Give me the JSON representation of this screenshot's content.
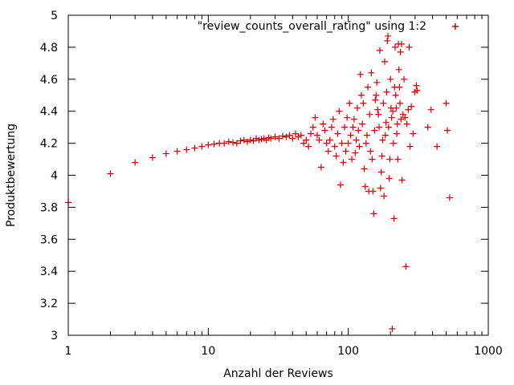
{
  "chart_data": {
    "type": "scatter",
    "title": "",
    "xlabel": "Anzahl der Reviews",
    "ylabel": "Produktbewertung",
    "xscale": "log",
    "xlim": [
      1,
      1000
    ],
    "ylim": [
      3,
      5
    ],
    "xticks": [
      1,
      10,
      100,
      1000
    ],
    "xtick_labels": [
      "1",
      "10",
      "100",
      "1000"
    ],
    "yticks": [
      3,
      3.2,
      3.4,
      3.6,
      3.8,
      4,
      4.2,
      4.4,
      4.6,
      4.8,
      5
    ],
    "ytick_labels": [
      "3",
      "3.2",
      "3.4",
      "3.6",
      "3.8",
      "4",
      "4.2",
      "4.4",
      "4.6",
      "4.8",
      "5"
    ],
    "grid": false,
    "legend_position": "top-right",
    "marker": "plus",
    "colors": {
      "series": "#cc0000",
      "axes": "#000000"
    },
    "series": [
      {
        "name": "\"review_counts_overall_rating\" using 1:2",
        "points": [
          [
            1,
            3.83
          ],
          [
            2,
            4.01
          ],
          [
            3,
            4.08
          ],
          [
            4,
            4.11
          ],
          [
            5,
            4.135
          ],
          [
            6,
            4.15
          ],
          [
            7,
            4.16
          ],
          [
            8,
            4.17
          ],
          [
            9,
            4.18
          ],
          [
            10,
            4.19
          ],
          [
            11,
            4.195
          ],
          [
            12,
            4.2
          ],
          [
            13,
            4.2
          ],
          [
            14,
            4.21
          ],
          [
            15,
            4.205
          ],
          [
            16,
            4.2
          ],
          [
            17,
            4.215
          ],
          [
            18,
            4.22
          ],
          [
            19,
            4.21
          ],
          [
            20,
            4.22
          ],
          [
            21,
            4.215
          ],
          [
            22,
            4.23
          ],
          [
            23,
            4.22
          ],
          [
            24,
            4.225
          ],
          [
            25,
            4.23
          ],
          [
            26,
            4.22
          ],
          [
            27,
            4.235
          ],
          [
            28,
            4.23
          ],
          [
            30,
            4.24
          ],
          [
            32,
            4.23
          ],
          [
            34,
            4.245
          ],
          [
            36,
            4.24
          ],
          [
            38,
            4.25
          ],
          [
            40,
            4.23
          ],
          [
            42,
            4.26
          ],
          [
            44,
            4.24
          ],
          [
            46,
            4.25
          ],
          [
            48,
            4.2
          ],
          [
            50,
            4.22
          ],
          [
            52,
            4.18
          ],
          [
            54,
            4.26
          ],
          [
            56,
            4.3
          ],
          [
            58,
            4.36
          ],
          [
            60,
            4.25
          ],
          [
            62,
            4.22
          ],
          [
            64,
            4.05
          ],
          [
            66,
            4.32
          ],
          [
            68,
            4.28
          ],
          [
            70,
            4.2
          ],
          [
            72,
            4.15
          ],
          [
            74,
            4.22
          ],
          [
            76,
            4.3
          ],
          [
            78,
            4.35
          ],
          [
            80,
            4.18
          ],
          [
            82,
            4.12
          ],
          [
            84,
            4.26
          ],
          [
            86,
            4.4
          ],
          [
            88,
            3.94
          ],
          [
            90,
            4.2
          ],
          [
            92,
            4.08
          ],
          [
            94,
            4.3
          ],
          [
            96,
            4.15
          ],
          [
            98,
            4.36
          ],
          [
            100,
            4.2
          ],
          [
            102,
            4.45
          ],
          [
            104,
            4.25
          ],
          [
            106,
            4.1
          ],
          [
            108,
            4.3
          ],
          [
            110,
            4.35
          ],
          [
            112,
            4.14
          ],
          [
            114,
            4.22
          ],
          [
            116,
            4.42
          ],
          [
            118,
            4.28
          ],
          [
            120,
            4.18
          ],
          [
            122,
            4.63
          ],
          [
            124,
            4.5
          ],
          [
            126,
            4.32
          ],
          [
            128,
            4.45
          ],
          [
            130,
            4.04
          ],
          [
            132,
            3.93
          ],
          [
            134,
            4.2
          ],
          [
            136,
            4.25
          ],
          [
            138,
            4.55
          ],
          [
            140,
            3.9
          ],
          [
            142,
            4.38
          ],
          [
            144,
            4.15
          ],
          [
            146,
            4.64
          ],
          [
            148,
            4.1
          ],
          [
            150,
            3.9
          ],
          [
            152,
            3.76
          ],
          [
            154,
            4.28
          ],
          [
            156,
            4.47
          ],
          [
            158,
            4.5
          ],
          [
            160,
            4.58
          ],
          [
            162,
            4.41
          ],
          [
            164,
            4.38
          ],
          [
            166,
            4.3
          ],
          [
            168,
            4.78
          ],
          [
            170,
            3.92
          ],
          [
            172,
            4.02
          ],
          [
            174,
            4.12
          ],
          [
            176,
            4.22
          ],
          [
            178,
            4.45
          ],
          [
            180,
            3.87
          ],
          [
            182,
            4.71
          ],
          [
            184,
            4.25
          ],
          [
            186,
            4.33
          ],
          [
            188,
            4.52
          ],
          [
            190,
            4.84
          ],
          [
            192,
            4.87
          ],
          [
            194,
            4.3
          ],
          [
            196,
            3.98
          ],
          [
            198,
            4.1
          ],
          [
            200,
            4.6
          ],
          [
            202,
            4.42
          ],
          [
            204,
            4.36
          ],
          [
            206,
            3.04
          ],
          [
            208,
            4.4
          ],
          [
            210,
            4.2
          ],
          [
            212,
            3.73
          ],
          [
            214,
            4.55
          ],
          [
            216,
            4.8
          ],
          [
            218,
            4.5
          ],
          [
            220,
            4.42
          ],
          [
            222,
            4.26
          ],
          [
            224,
            4.32
          ],
          [
            226,
            4.1
          ],
          [
            228,
            4.82
          ],
          [
            230,
            4.66
          ],
          [
            232,
            4.55
          ],
          [
            234,
            4.45
          ],
          [
            236,
            4.77
          ],
          [
            238,
            4.35
          ],
          [
            240,
            4.82
          ],
          [
            242,
            3.97
          ],
          [
            246,
            4.38
          ],
          [
            250,
            4.6
          ],
          [
            254,
            4.36
          ],
          [
            258,
            3.43
          ],
          [
            262,
            4.32
          ],
          [
            268,
            4.41
          ],
          [
            272,
            4.8
          ],
          [
            276,
            4.18
          ],
          [
            282,
            4.43
          ],
          [
            290,
            4.26
          ],
          [
            298,
            4.52
          ],
          [
            306,
            4.56
          ],
          [
            310,
            4.53
          ],
          [
            370,
            4.3
          ],
          [
            390,
            4.41
          ],
          [
            430,
            4.18
          ],
          [
            500,
            4.45
          ],
          [
            510,
            4.28
          ],
          [
            530,
            3.86
          ],
          [
            580,
            4.93
          ]
        ]
      }
    ]
  }
}
